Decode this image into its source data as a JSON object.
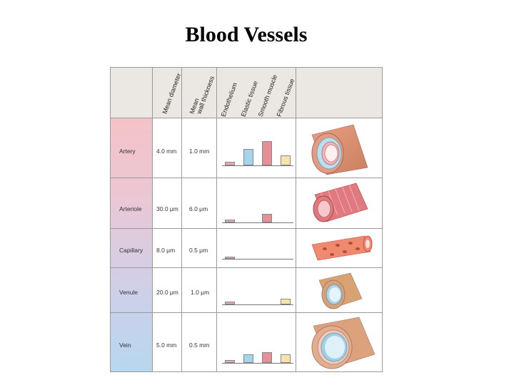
{
  "title": "Blood Vessels",
  "headers": {
    "mean_diameter": "Mean diameter",
    "wall_thickness_line1": "Mean",
    "wall_thickness_line2": "wall thickness",
    "endothelium": "Endothelium",
    "elastic": "Elastic tissue",
    "smooth": "Smooth muscle",
    "fibrous": "Fibrous tissue"
  },
  "rows": [
    {
      "name": "Artery",
      "diameter": "4.0 mm",
      "wall": "1.0 mm",
      "bars": {
        "endothelium": 0.15,
        "elastic": 0.65,
        "smooth": 0.95,
        "fibrous": 0.4
      }
    },
    {
      "name": "Arteriole",
      "diameter": "30.0 μm",
      "wall": "6.0 μm",
      "bars": {
        "endothelium": 0.2,
        "elastic": 0,
        "smooth": 0.55,
        "fibrous": 0
      }
    },
    {
      "name": "Capillary",
      "diameter": "8.0 μm",
      "wall": "0.5 μm",
      "bars": {
        "endothelium": 0.25,
        "elastic": 0,
        "smooth": 0,
        "fibrous": 0
      }
    },
    {
      "name": "Venule",
      "diameter": "20.0 μm",
      "wall": "1.0 μm",
      "bars": {
        "endothelium": 0.2,
        "elastic": 0,
        "smooth": 0,
        "fibrous": 0.45
      }
    },
    {
      "name": "Vein",
      "diameter": "5.0 mm",
      "wall": "0.5 mm",
      "bars": {
        "endothelium": 0.2,
        "elastic": 0.55,
        "smooth": 0.7,
        "fibrous": 0.55
      }
    }
  ],
  "colors": {
    "endothelium": "#f2a8b2",
    "elastic": "#a6d3ee",
    "smooth": "#e58f98",
    "fibrous": "#f8e3ad"
  }
}
